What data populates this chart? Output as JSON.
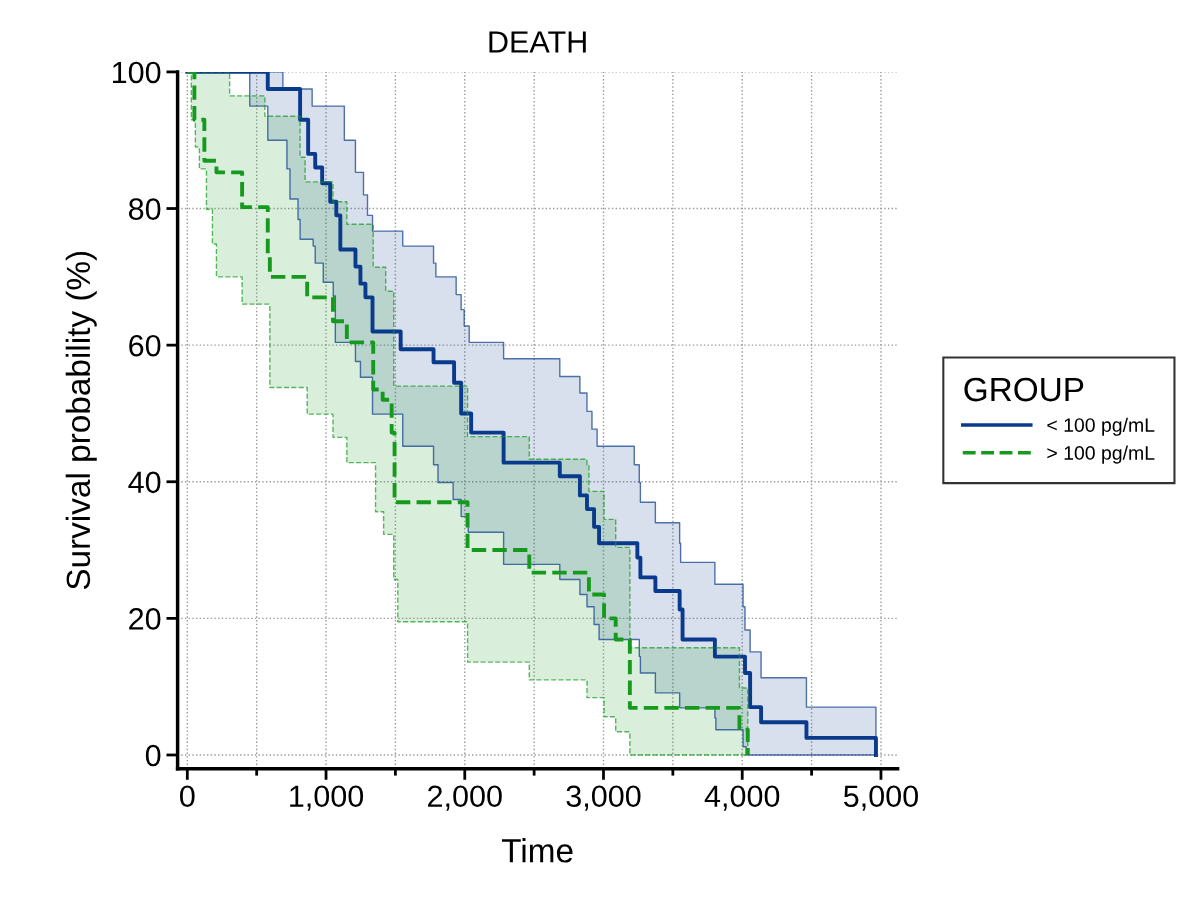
{
  "chart_data": {
    "type": "step",
    "title": "DEATH",
    "xlabel": "Time",
    "ylabel": "Survival probability (%)",
    "legend_title": "GROUP",
    "legend": "right",
    "grid": true,
    "marker": "none",
    "xlim": [
      -70,
      5120
    ],
    "ylim": [
      -2,
      100
    ],
    "xticks": [
      0,
      {
        "value": 500,
        "label": null
      },
      {
        "value": 1000,
        "label": "1,000"
      },
      {
        "value": 1500,
        "label": null
      },
      {
        "value": 2000,
        "label": "2,000"
      },
      {
        "value": 2500,
        "label": null
      },
      {
        "value": 3000,
        "label": "3,000"
      },
      {
        "value": 3500,
        "label": null
      },
      {
        "value": 4000,
        "label": "4,000"
      },
      {
        "value": 4500,
        "label": null
      },
      {
        "value": 5000,
        "label": "5,000"
      }
    ],
    "yticks": [
      0,
      20,
      40,
      60,
      80,
      100
    ],
    "series": [
      {
        "name": "< 100 pg/mL",
        "color": "#0a3a8c",
        "line_style": "solid",
        "x": [
          0,
          450,
          580,
          689,
          718,
          740,
          798,
          813,
          871,
          900,
          907,
          922,
          972,
          980,
          1030,
          1052,
          1067,
          1074,
          1103,
          1132,
          1212,
          1248,
          1270,
          1284,
          1299,
          1335,
          1538,
          1553,
          1775,
          1792,
          1807,
          1916,
          1923,
          1938,
          1974,
          1996,
          2025,
          2032,
          2046,
          2280,
          2685,
          2830,
          2881,
          2917,
          2932,
          2954,
          2968,
          3222,
          3244,
          3258,
          3266,
          3374,
          3549,
          3556,
          3570,
          3803,
          3810,
          4006,
          4020,
          4028,
          4057,
          4136,
          4463,
          4964
        ],
        "values": [
          100,
          100,
          97.5,
          97.5,
          97.5,
          97.5,
          97.5,
          93,
          88,
          88,
          88,
          86,
          83.7,
          83.7,
          81,
          81,
          81,
          79,
          74,
          74,
          71.5,
          69,
          69,
          67,
          67,
          62,
          59.4,
          59.4,
          57.5,
          57.5,
          57.5,
          57.5,
          54.5,
          54.5,
          50,
          50,
          50,
          50,
          47.2,
          42.8,
          40.8,
          38,
          36,
          36,
          33.4,
          33.4,
          31,
          31,
          28.9,
          28.9,
          26,
          24,
          21.3,
          21.3,
          16.9,
          14.4,
          14.4,
          14.4,
          12,
          12,
          7,
          4.8,
          2.5,
          0
        ],
        "lower": [
          100,
          95,
          90,
          90,
          85.8,
          81.4,
          78.4,
          75.5,
          75.5,
          75.5,
          74.5,
          72,
          72,
          69.2,
          69.2,
          67.2,
          60.4,
          60.4,
          60.4,
          60.4,
          57.6,
          55.3,
          55.3,
          55.3,
          55.3,
          49.9,
          49.9,
          45.2,
          42.5,
          42.5,
          39.9,
          37.4,
          37.4,
          37.4,
          34.9,
          34.9,
          32.6,
          32.6,
          32.6,
          27.9,
          25.7,
          23.5,
          21.7,
          21.7,
          19.1,
          19.1,
          16.9,
          16.9,
          16.9,
          14.4,
          12,
          9.1,
          6.9,
          6.9,
          6.9,
          5.4,
          3.7,
          1.2,
          1.2,
          0,
          0,
          0,
          0,
          0
        ],
        "upper": [
          100,
          100,
          100,
          97.5,
          97.5,
          97.5,
          97.5,
          97.5,
          97.5,
          95,
          95,
          95,
          95,
          95,
          95,
          95,
          95,
          95,
          95,
          90,
          85.3,
          85.3,
          82,
          82,
          79,
          76.7,
          76.7,
          74.5,
          72,
          70,
          70,
          70,
          70,
          67.4,
          65.2,
          62.8,
          62.8,
          60.4,
          60.4,
          58,
          55.4,
          53,
          50.3,
          47.7,
          47.7,
          45.2,
          45.2,
          42.5,
          42.5,
          39.9,
          37,
          34,
          31,
          28.2,
          28.2,
          25,
          25,
          21.7,
          18.3,
          18.3,
          15.1,
          11.3,
          7,
          0
        ]
      },
      {
        "name": "> 100 pg/mL",
        "color": "#159a1e",
        "line_style": "dashed",
        "x": [
          0,
          29,
          51,
          58,
          87,
          123,
          138,
          181,
          210,
          305,
          395,
          559,
          580,
          595,
          813,
          849,
          864,
          1050,
          1150,
          1340,
          1357,
          1408,
          1415,
          1430,
          1473,
          1488,
          1494,
          1517,
          2020,
          2465,
          2881,
          2895,
          3004,
          3088,
          3190,
          3980,
          4040
        ],
        "values": [
          100,
          100,
          93,
          93,
          93,
          87,
          87,
          87,
          85.3,
          85.3,
          80.2,
          80.2,
          73,
          70,
          70,
          70,
          67,
          63.5,
          60.4,
          53.5,
          53.5,
          52,
          52,
          52,
          47.2,
          47.2,
          37,
          37,
          30,
          26.7,
          26.7,
          23.5,
          20,
          16.9,
          6.9,
          3.7,
          0
        ],
        "lower": [
          100,
          93,
          93,
          89,
          85.8,
          85.8,
          79.9,
          74.8,
          70,
          70,
          66,
          66,
          66,
          53.8,
          53.8,
          53.8,
          49.9,
          46.5,
          42.8,
          42.8,
          35.6,
          35.6,
          32.3,
          32.3,
          32.3,
          25.7,
          25.7,
          19.5,
          13.6,
          11,
          8.4,
          8.4,
          5.6,
          3.4,
          0,
          0,
          0
        ],
        "upper": [
          100,
          100,
          100,
          100,
          100,
          100,
          100,
          100,
          100,
          96.5,
          96.5,
          93.5,
          93.5,
          93.5,
          87.5,
          83.9,
          83.9,
          81,
          77.7,
          71.4,
          71.4,
          71.4,
          71.4,
          67.9,
          67.9,
          54,
          54,
          54,
          46.6,
          43.3,
          42.5,
          38.6,
          34.5,
          30.4,
          15.7,
          9.8,
          0
        ]
      }
    ]
  }
}
